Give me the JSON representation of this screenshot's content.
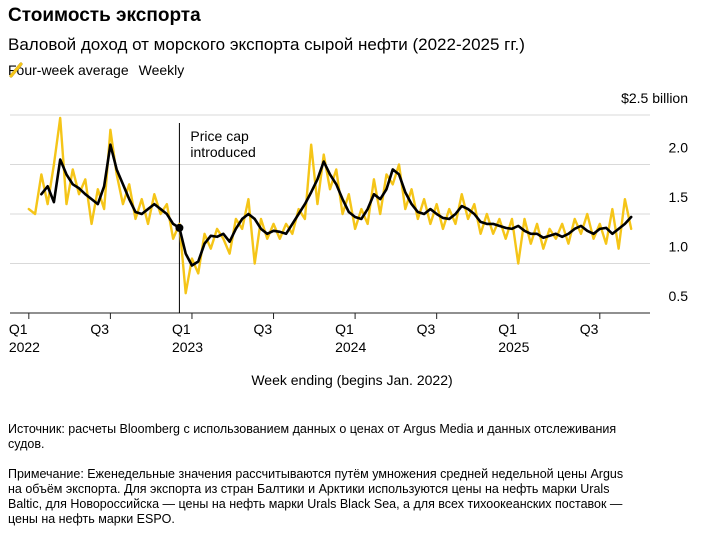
{
  "chart_data": {
    "type": "line",
    "title": "Стоимость экспорта",
    "subtitle": "Валовой доход от морского экспорта сырой нефти (2022-2025 гг.)",
    "x_label": "Week ending (begins Jan. 2022)",
    "source": "Источник: расчеты Bloomberg с использованием данных о ценах от Argus Media и данных отслеживания судов.",
    "note": "Примечание: Еженедельные значения рассчитываются путём умножения средней недельной цены Argus на объём экспорта. Для экспорта из стран Балтики и Арктики используются цены на нефть марки Urals Baltic, для Новороссийска — цены на нефть марки Urals Black Sea, а для всех тихоокеанских поставок — цены на нефть марки ESPO.",
    "x": [
      0,
      2,
      4,
      6,
      8,
      10,
      12,
      14,
      16,
      18,
      20,
      22,
      24,
      26,
      28,
      30,
      32,
      34,
      36,
      38,
      40,
      42,
      44,
      46,
      48,
      50,
      52,
      54,
      56,
      58,
      60,
      62,
      64,
      66,
      68,
      70,
      72,
      74,
      76,
      78,
      80,
      82,
      84,
      86,
      88,
      90,
      92,
      94,
      96,
      98,
      100,
      102,
      104,
      106,
      108,
      110,
      112,
      114,
      116,
      118,
      120,
      122,
      124,
      126,
      128,
      130,
      132,
      134,
      136,
      138,
      140,
      142,
      144,
      146,
      148,
      150,
      152,
      154,
      156,
      158,
      160,
      162,
      164,
      166,
      168,
      170,
      172,
      174,
      176,
      178,
      180,
      182,
      184,
      186,
      188,
      190,
      192
    ],
    "xlim": [
      -6,
      198
    ],
    "xticks": [
      {
        "value": 0,
        "label": "Q1\n2022"
      },
      {
        "value": 26,
        "label": "Q3"
      },
      {
        "value": 52,
        "label": "Q1\n2023"
      },
      {
        "value": 78,
        "label": "Q3"
      },
      {
        "value": 104,
        "label": "Q1\n2024"
      },
      {
        "value": 130,
        "label": "Q3"
      },
      {
        "value": 156,
        "label": "Q1\n2025"
      },
      {
        "value": 182,
        "label": "Q3"
      }
    ],
    "ylim": [
      0.5,
      2.5
    ],
    "yticks": [
      0.5,
      {
        "value": 1,
        "label": "1.0"
      },
      {
        "value": 1.5,
        "label": "1.5"
      },
      {
        "value": 2,
        "label": "2.0"
      },
      {
        "value": 2.5,
        "label": "$2.5 billion"
      }
    ],
    "grid": true,
    "series": [
      {
        "name": "Four-week average",
        "color": "#000000",
        "values": [
          null,
          null,
          1.7,
          1.78,
          1.62,
          2.05,
          1.9,
          1.8,
          1.76,
          1.7,
          1.65,
          1.6,
          1.78,
          2.2,
          1.95,
          1.8,
          1.65,
          1.52,
          1.5,
          1.55,
          1.6,
          1.55,
          1.5,
          1.4,
          1.36,
          1.1,
          0.98,
          1.02,
          1.2,
          1.28,
          1.27,
          1.3,
          1.22,
          1.35,
          1.45,
          1.5,
          1.45,
          1.35,
          1.3,
          1.33,
          1.32,
          1.3,
          1.4,
          1.5,
          1.6,
          1.72,
          1.85,
          2.03,
          1.9,
          1.8,
          1.65,
          1.52,
          1.47,
          1.45,
          1.55,
          1.7,
          1.65,
          1.75,
          1.95,
          1.9,
          1.72,
          1.6,
          1.52,
          1.5,
          1.55,
          1.5,
          1.46,
          1.45,
          1.5,
          1.58,
          1.55,
          1.5,
          1.42,
          1.4,
          1.4,
          1.38,
          1.36,
          1.35,
          1.38,
          1.33,
          1.3,
          1.3,
          1.26,
          1.28,
          1.3,
          1.27,
          1.3,
          1.35,
          1.38,
          1.33,
          1.3,
          1.35,
          1.36,
          1.3,
          1.35,
          1.4,
          1.47
        ]
      },
      {
        "name": "Weekly",
        "color": "#f5c518",
        "values": [
          1.55,
          1.5,
          1.9,
          1.6,
          2.0,
          2.47,
          1.6,
          1.95,
          1.7,
          1.85,
          1.4,
          1.75,
          1.55,
          2.35,
          1.9,
          1.6,
          1.8,
          1.45,
          1.65,
          1.4,
          1.7,
          1.5,
          1.6,
          1.25,
          1.4,
          0.7,
          1.05,
          0.9,
          1.3,
          1.15,
          1.35,
          1.25,
          1.1,
          1.45,
          1.35,
          1.65,
          1.0,
          1.45,
          1.25,
          1.4,
          1.25,
          1.4,
          1.3,
          1.55,
          1.45,
          2.2,
          1.6,
          2.1,
          1.75,
          1.95,
          1.5,
          1.7,
          1.35,
          1.55,
          1.4,
          1.85,
          1.5,
          1.9,
          1.8,
          2.0,
          1.55,
          1.75,
          1.45,
          1.65,
          1.4,
          1.6,
          1.35,
          1.55,
          1.4,
          1.7,
          1.45,
          1.6,
          1.3,
          1.5,
          1.3,
          1.45,
          1.25,
          1.45,
          1.0,
          1.45,
          1.2,
          1.4,
          1.15,
          1.35,
          1.25,
          1.4,
          1.2,
          1.45,
          1.3,
          1.5,
          1.25,
          1.4,
          1.2,
          1.55,
          1.15,
          1.65,
          1.35
        ]
      }
    ],
    "annotations": [
      {
        "text": "Price cap\nintroduced",
        "x": 48
      }
    ]
  }
}
